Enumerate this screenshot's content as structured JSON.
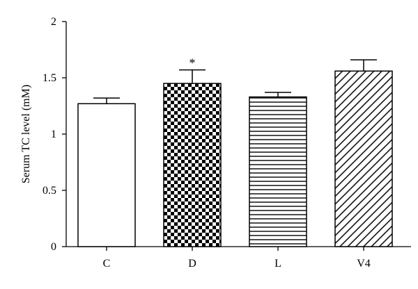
{
  "chart_data": {
    "type": "bar",
    "categories": [
      "C",
      "D",
      "L",
      "V4"
    ],
    "values": [
      1.27,
      1.45,
      1.33,
      1.56
    ],
    "errors": [
      0.05,
      0.12,
      0.04,
      0.1
    ],
    "significance": [
      "",
      "*",
      "",
      ""
    ],
    "fills": [
      "plain",
      "checker",
      "horizontal-lines",
      "diagonal-lines"
    ],
    "ylabel": "Serum TC level (mM)",
    "xlabel": "",
    "ylim": [
      0,
      2
    ],
    "yticks": [
      0,
      0.5,
      1,
      1.5,
      2
    ],
    "ytick_labels": [
      "0",
      "0.5",
      "1",
      "1.5",
      "2"
    ],
    "grid": false,
    "colors": {
      "bar_stroke": "#000000",
      "fill_dark": "#000000",
      "fill_light": "#ffffff"
    }
  }
}
